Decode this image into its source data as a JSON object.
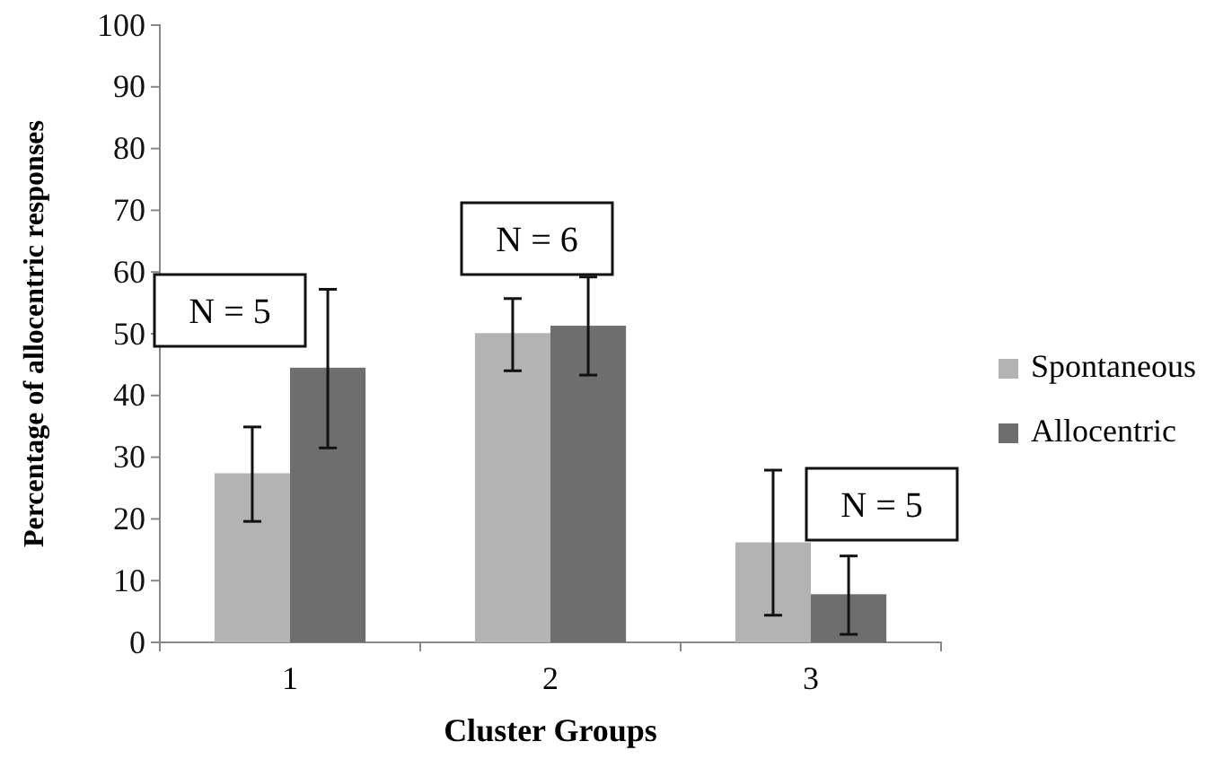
{
  "chart_data": {
    "type": "bar",
    "xlabel": "Cluster Groups",
    "ylabel": "Percentage of allocentric responses",
    "categories": [
      "1",
      "2",
      "3"
    ],
    "series": [
      {
        "name": "Spontaneous",
        "color": "#b3b3b3",
        "values": [
          27.4,
          50.1,
          16.2
        ],
        "errors": [
          [
            19.6,
            34.9
          ],
          [
            44.0,
            55.7
          ],
          [
            4.4,
            27.9
          ]
        ]
      },
      {
        "name": "Allocentric",
        "color": "#6e6e6e",
        "values": [
          44.5,
          51.3,
          7.8
        ],
        "errors": [
          [
            31.5,
            57.2
          ],
          [
            43.3,
            59.2
          ],
          [
            1.3,
            14.0
          ]
        ]
      }
    ],
    "ylim": [
      0,
      100
    ],
    "yticks": [
      0,
      10,
      20,
      30,
      40,
      50,
      60,
      70,
      80,
      90,
      100
    ],
    "grid": false,
    "legend": "right",
    "annotations": [
      "N = 5",
      "N = 6",
      "N = 5"
    ]
  }
}
